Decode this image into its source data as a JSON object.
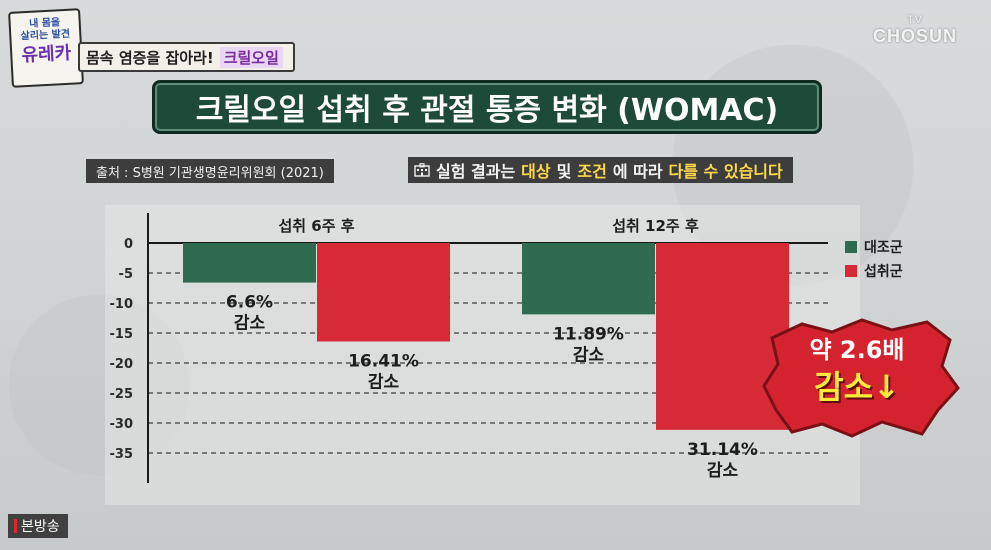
{
  "logo": {
    "line1": "내 몸을",
    "line2": "살리는 발견",
    "line3": "유레카"
  },
  "topic": {
    "text": "몸속 염증을 잡아라!",
    "accent": "크릴오일"
  },
  "broadcaster": {
    "tv": "TV",
    "name": "CHOSUN"
  },
  "title": "크릴오일 섭취 후 관절 통증 변화 (WOMAC)",
  "source": "출처 : S병원 기관생명윤리위원회 (2021)",
  "notice": {
    "icon": "hospital-icon",
    "parts": [
      "실험 결과는 ",
      "대상",
      " 및 ",
      "조건",
      "에 따라 ",
      "다를 수 있습니다"
    ]
  },
  "colors": {
    "control": "#2e6b50",
    "krill": "#d62a36",
    "title_bg": "#1e4a39",
    "highlight": "#ffd84a"
  },
  "stamp": {
    "line1": "약 2.6배",
    "line2": "감소"
  },
  "badge": "본방송",
  "chart_data": {
    "type": "bar",
    "categories": [
      "섭취 6주 후",
      "섭취 12주 후"
    ],
    "series": [
      {
        "name": "대조군",
        "values": [
          -6.6,
          -11.89
        ],
        "color": "#2e6b50"
      },
      {
        "name": "섭취군",
        "values": [
          -16.41,
          -31.14
        ],
        "color": "#d62a36"
      }
    ],
    "data_labels": [
      [
        "6.6%",
        "감소"
      ],
      [
        "16.41%",
        "감소"
      ],
      [
        "11.89%",
        "감소"
      ],
      [
        "31.14%",
        "감소"
      ]
    ],
    "yticks": [
      0,
      -5,
      -10,
      -15,
      -20,
      -25,
      -30,
      -35
    ],
    "ytick_labels": [
      "0",
      "-5",
      "-10",
      "-15",
      "-20",
      "-25",
      "-30",
      "-35"
    ],
    "ylim": [
      -40,
      0
    ],
    "grid": true,
    "legend": "top-right"
  }
}
